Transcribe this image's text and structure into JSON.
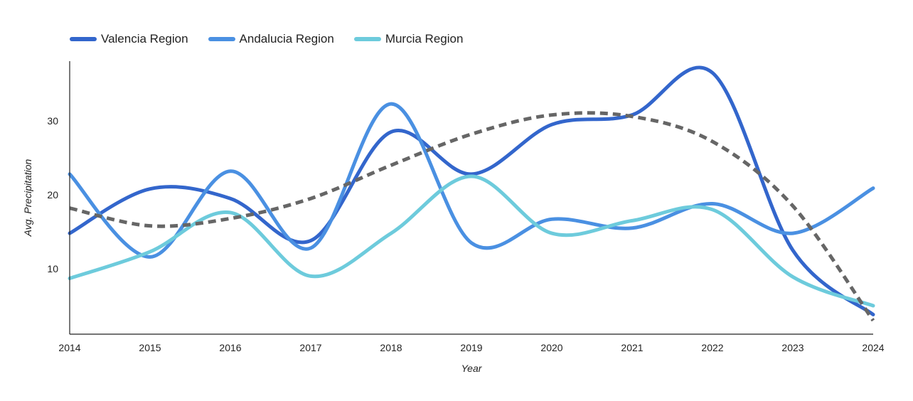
{
  "chart_data": {
    "type": "line",
    "title": "",
    "xlabel": "Year",
    "ylabel": "Avg. Precipitation",
    "x": [
      2014,
      2015,
      2016,
      2017,
      2018,
      2019,
      2020,
      2021,
      2022,
      2023,
      2024
    ],
    "xlim": [
      2014,
      2024
    ],
    "ylim": [
      1,
      38
    ],
    "yticks": [
      10,
      20,
      30
    ],
    "grid": false,
    "legend_position": "top-left",
    "series": [
      {
        "name": "Valencia Region",
        "color": "#3366cc",
        "values": [
          14.8,
          20.8,
          19.5,
          13.8,
          28.5,
          22.8,
          29.5,
          30.8,
          36.5,
          12.5,
          3.8
        ]
      },
      {
        "name": "Andalucia Region",
        "color": "#4a90e2",
        "values": [
          22.8,
          11.6,
          23.2,
          12.8,
          32.3,
          13.5,
          16.7,
          15.5,
          18.8,
          14.8,
          20.9
        ]
      },
      {
        "name": "Murcia Region",
        "color": "#6dcbdc",
        "values": [
          8.7,
          12.3,
          17.6,
          9.0,
          14.8,
          22.5,
          14.8,
          16.5,
          18.0,
          8.9,
          5.0
        ]
      }
    ],
    "trendline": {
      "style": "dashed",
      "color": "#666666",
      "values": [
        18.2,
        15.8,
        16.8,
        19.5,
        24.0,
        28.2,
        30.8,
        30.6,
        27.2,
        18.5,
        3.0
      ]
    }
  }
}
